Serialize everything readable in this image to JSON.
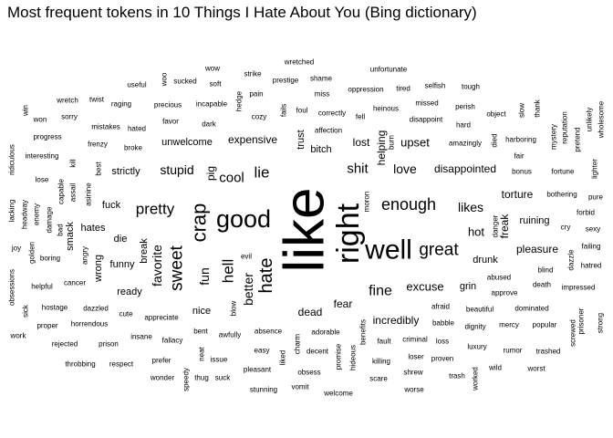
{
  "chart_data": {
    "type": "wordcloud",
    "title": "Most frequent tokens in 10 Things I Hate About You (Bing dictionary)",
    "words": [
      {
        "word": "like",
        "weight": 62,
        "rotated": true
      },
      {
        "word": "right",
        "weight": 34,
        "rotated": true
      },
      {
        "word": "well",
        "weight": 30,
        "rotated": false
      },
      {
        "word": "good",
        "weight": 27,
        "rotated": false
      },
      {
        "word": "crap",
        "weight": 22,
        "rotated": true
      },
      {
        "word": "hate",
        "weight": 20,
        "rotated": true
      },
      {
        "word": "great",
        "weight": 19,
        "rotated": false
      },
      {
        "word": "sweet",
        "weight": 19,
        "rotated": true
      },
      {
        "word": "enough",
        "weight": 18,
        "rotated": false
      },
      {
        "word": "pretty",
        "weight": 17,
        "rotated": false
      },
      {
        "word": "lie",
        "weight": 17,
        "rotated": false
      },
      {
        "word": "hell",
        "weight": 17,
        "rotated": true
      },
      {
        "word": "fine",
        "weight": 16,
        "rotated": false
      },
      {
        "word": "shit",
        "weight": 15,
        "rotated": false
      },
      {
        "word": "cool",
        "weight": 15,
        "rotated": false
      },
      {
        "word": "fun",
        "weight": 14,
        "rotated": true
      },
      {
        "word": "better",
        "weight": 14,
        "rotated": true
      },
      {
        "word": "love",
        "weight": 14,
        "rotated": false
      },
      {
        "word": "stupid",
        "weight": 14,
        "rotated": false
      },
      {
        "word": "favorite",
        "weight": 14,
        "rotated": true
      },
      {
        "word": "likes",
        "weight": 14,
        "rotated": false
      },
      {
        "word": "hot",
        "weight": 13,
        "rotated": false
      },
      {
        "word": "excuse",
        "weight": 13,
        "rotated": false
      },
      {
        "word": "upset",
        "weight": 13,
        "rotated": false
      },
      {
        "word": "disappointed",
        "weight": 12,
        "rotated": false
      },
      {
        "word": "lost",
        "weight": 12,
        "rotated": false
      },
      {
        "word": "expensive",
        "weight": 12,
        "rotated": false
      },
      {
        "word": "pig",
        "weight": 12,
        "rotated": true
      },
      {
        "word": "dead",
        "weight": 12,
        "rotated": false
      },
      {
        "word": "fear",
        "weight": 12,
        "rotated": false
      },
      {
        "word": "incredibly",
        "weight": 12,
        "rotated": false
      },
      {
        "word": "freak",
        "weight": 12,
        "rotated": true
      },
      {
        "word": "pleasure",
        "weight": 12,
        "rotated": false
      },
      {
        "word": "torture",
        "weight": 12,
        "rotated": false
      },
      {
        "word": "helping",
        "weight": 12,
        "rotated": true
      },
      {
        "word": "trust",
        "weight": 11,
        "rotated": true
      },
      {
        "word": "bitch",
        "weight": 11,
        "rotated": false
      },
      {
        "word": "unwelcome",
        "weight": 11,
        "rotated": false
      },
      {
        "word": "strictly",
        "weight": 11,
        "rotated": false
      },
      {
        "word": "fuck",
        "weight": 11,
        "rotated": false
      },
      {
        "word": "smack",
        "weight": 11,
        "rotated": true
      },
      {
        "word": "hates",
        "weight": 11,
        "rotated": false
      },
      {
        "word": "wrong",
        "weight": 11,
        "rotated": true
      },
      {
        "word": "die",
        "weight": 11,
        "rotated": false
      },
      {
        "word": "funny",
        "weight": 11,
        "rotated": false
      },
      {
        "word": "break",
        "weight": 11,
        "rotated": true
      },
      {
        "word": "ready",
        "weight": 11,
        "rotated": false
      },
      {
        "word": "grin",
        "weight": 11,
        "rotated": false
      },
      {
        "word": "drunk",
        "weight": 11,
        "rotated": false
      },
      {
        "word": "ruining",
        "weight": 11,
        "rotated": false
      },
      {
        "word": "nice",
        "weight": 11,
        "rotated": false
      },
      {
        "word": "cancer",
        "weight": 8,
        "rotated": false
      },
      {
        "word": "wretched",
        "weight": 8,
        "rotated": false
      },
      {
        "word": "wow",
        "weight": 8,
        "rotated": false
      },
      {
        "word": "strike",
        "weight": 8,
        "rotated": false
      },
      {
        "word": "prestige",
        "weight": 8,
        "rotated": false
      },
      {
        "word": "shame",
        "weight": 8,
        "rotated": false
      },
      {
        "word": "unfortunate",
        "weight": 8,
        "rotated": false
      },
      {
        "word": "useful",
        "weight": 8,
        "rotated": false
      },
      {
        "word": "woo",
        "weight": 8,
        "rotated": true
      },
      {
        "word": "sucked",
        "weight": 8,
        "rotated": false
      },
      {
        "word": "soft",
        "weight": 8,
        "rotated": false
      },
      {
        "word": "pain",
        "weight": 8,
        "rotated": false
      },
      {
        "word": "miss",
        "weight": 8,
        "rotated": false
      },
      {
        "word": "oppression",
        "weight": 8,
        "rotated": false
      },
      {
        "word": "tired",
        "weight": 8,
        "rotated": false
      },
      {
        "word": "selfish",
        "weight": 8,
        "rotated": false
      },
      {
        "word": "tough",
        "weight": 8,
        "rotated": false
      },
      {
        "word": "wretch",
        "weight": 8,
        "rotated": false
      },
      {
        "word": "twist",
        "weight": 8,
        "rotated": false
      },
      {
        "word": "raging",
        "weight": 8,
        "rotated": false
      },
      {
        "word": "precious",
        "weight": 8,
        "rotated": false
      },
      {
        "word": "incapable",
        "weight": 8,
        "rotated": false
      },
      {
        "word": "hedge",
        "weight": 8,
        "rotated": true
      },
      {
        "word": "fails",
        "weight": 8,
        "rotated": true
      },
      {
        "word": "foul",
        "weight": 8,
        "rotated": false
      },
      {
        "word": "correctly",
        "weight": 8,
        "rotated": false
      },
      {
        "word": "heinous",
        "weight": 8,
        "rotated": false
      },
      {
        "word": "missed",
        "weight": 8,
        "rotated": false
      },
      {
        "word": "perish",
        "weight": 8,
        "rotated": false
      },
      {
        "word": "win",
        "weight": 8,
        "rotated": true
      },
      {
        "word": "won",
        "weight": 8,
        "rotated": false
      },
      {
        "word": "sorry",
        "weight": 8,
        "rotated": false
      },
      {
        "word": "favor",
        "weight": 8,
        "rotated": false
      },
      {
        "word": "cozy",
        "weight": 8,
        "rotated": false
      },
      {
        "word": "fell",
        "weight": 8,
        "rotated": false
      },
      {
        "word": "disappoint",
        "weight": 8,
        "rotated": false
      },
      {
        "word": "object",
        "weight": 8,
        "rotated": false
      },
      {
        "word": "slow",
        "weight": 8,
        "rotated": true
      },
      {
        "word": "thank",
        "weight": 8,
        "rotated": true
      },
      {
        "word": "mistakes",
        "weight": 8,
        "rotated": false
      },
      {
        "word": "hated",
        "weight": 8,
        "rotated": false
      },
      {
        "word": "dark",
        "weight": 8,
        "rotated": false
      },
      {
        "word": "affection",
        "weight": 8,
        "rotated": false
      },
      {
        "word": "burn",
        "weight": 8,
        "rotated": true
      },
      {
        "word": "hard",
        "weight": 8,
        "rotated": false
      },
      {
        "word": "progress",
        "weight": 8,
        "rotated": false
      },
      {
        "word": "frenzy",
        "weight": 8,
        "rotated": false
      },
      {
        "word": "broke",
        "weight": 8,
        "rotated": false
      },
      {
        "word": "amazingly",
        "weight": 8,
        "rotated": false
      },
      {
        "word": "died",
        "weight": 8,
        "rotated": true
      },
      {
        "word": "harboring",
        "weight": 8,
        "rotated": false
      },
      {
        "word": "mystery",
        "weight": 8,
        "rotated": true
      },
      {
        "word": "reputation",
        "weight": 8,
        "rotated": true
      },
      {
        "word": "unlikely",
        "weight": 8,
        "rotated": true
      },
      {
        "word": "wholesome",
        "weight": 8,
        "rotated": true
      },
      {
        "word": "pretend",
        "weight": 8,
        "rotated": true
      },
      {
        "word": "ridiculous",
        "weight": 8,
        "rotated": true
      },
      {
        "word": "interesting",
        "weight": 8,
        "rotated": false
      },
      {
        "word": "kill",
        "weight": 8,
        "rotated": true
      },
      {
        "word": "best",
        "weight": 8,
        "rotated": true
      },
      {
        "word": "fair",
        "weight": 8,
        "rotated": false
      },
      {
        "word": "bonus",
        "weight": 8,
        "rotated": false
      },
      {
        "word": "fortune",
        "weight": 8,
        "rotated": false
      },
      {
        "word": "lighter",
        "weight": 8,
        "rotated": true
      },
      {
        "word": "lose",
        "weight": 8,
        "rotated": false
      },
      {
        "word": "capable",
        "weight": 8,
        "rotated": true
      },
      {
        "word": "assail",
        "weight": 8,
        "rotated": true
      },
      {
        "word": "asinine",
        "weight": 8,
        "rotated": true
      },
      {
        "word": "moron",
        "weight": 8,
        "rotated": true
      },
      {
        "word": "bothering",
        "weight": 8,
        "rotated": false
      },
      {
        "word": "pure",
        "weight": 8,
        "rotated": false
      },
      {
        "word": "lacking",
        "weight": 8,
        "rotated": true
      },
      {
        "word": "headway",
        "weight": 8,
        "rotated": true
      },
      {
        "word": "enemy",
        "weight": 8,
        "rotated": true
      },
      {
        "word": "damage",
        "weight": 8,
        "rotated": true
      },
      {
        "word": "bad",
        "weight": 8,
        "rotated": true
      },
      {
        "word": "forbid",
        "weight": 8,
        "rotated": false
      },
      {
        "word": "danger",
        "weight": 8,
        "rotated": true
      },
      {
        "word": "cry",
        "weight": 8,
        "rotated": false
      },
      {
        "word": "sexy",
        "weight": 8,
        "rotated": false
      },
      {
        "word": "joy",
        "weight": 8,
        "rotated": false
      },
      {
        "word": "golden",
        "weight": 8,
        "rotated": true
      },
      {
        "word": "boring",
        "weight": 8,
        "rotated": false
      },
      {
        "word": "angry",
        "weight": 8,
        "rotated": true
      },
      {
        "word": "evil",
        "weight": 8,
        "rotated": false
      },
      {
        "word": "failing",
        "weight": 8,
        "rotated": false
      },
      {
        "word": "dazzle",
        "weight": 8,
        "rotated": true
      },
      {
        "word": "blind",
        "weight": 8,
        "rotated": false
      },
      {
        "word": "hatred",
        "weight": 8,
        "rotated": false
      },
      {
        "word": "obsessions",
        "weight": 8,
        "rotated": true
      },
      {
        "word": "helpful",
        "weight": 8,
        "rotated": false
      },
      {
        "word": "abused",
        "weight": 8,
        "rotated": false
      },
      {
        "word": "death",
        "weight": 8,
        "rotated": false
      },
      {
        "word": "approve",
        "weight": 8,
        "rotated": false
      },
      {
        "word": "impressed",
        "weight": 8,
        "rotated": false
      },
      {
        "word": "sick",
        "weight": 8,
        "rotated": true
      },
      {
        "word": "hostage",
        "weight": 8,
        "rotated": false
      },
      {
        "word": "dazzled",
        "weight": 8,
        "rotated": false
      },
      {
        "word": "blow",
        "weight": 8,
        "rotated": true
      },
      {
        "word": "afraid",
        "weight": 8,
        "rotated": false
      },
      {
        "word": "beautiful",
        "weight": 8,
        "rotated": false
      },
      {
        "word": "dominated",
        "weight": 8,
        "rotated": false
      },
      {
        "word": "cute",
        "weight": 8,
        "rotated": false
      },
      {
        "word": "appreciate",
        "weight": 8,
        "rotated": false
      },
      {
        "word": "proper",
        "weight": 8,
        "rotated": false
      },
      {
        "word": "horrendous",
        "weight": 8,
        "rotated": false
      },
      {
        "word": "babble",
        "weight": 8,
        "rotated": false
      },
      {
        "word": "dignity",
        "weight": 8,
        "rotated": false
      },
      {
        "word": "mercy",
        "weight": 8,
        "rotated": false
      },
      {
        "word": "popular",
        "weight": 8,
        "rotated": false
      },
      {
        "word": "prisoner",
        "weight": 8,
        "rotated": true
      },
      {
        "word": "strong",
        "weight": 8,
        "rotated": true
      },
      {
        "word": "bent",
        "weight": 8,
        "rotated": false
      },
      {
        "word": "absence",
        "weight": 8,
        "rotated": false
      },
      {
        "word": "adorable",
        "weight": 8,
        "rotated": false
      },
      {
        "word": "benefits",
        "weight": 8,
        "rotated": true
      },
      {
        "word": "screwed",
        "weight": 8,
        "rotated": true
      },
      {
        "word": "work",
        "weight": 8,
        "rotated": false
      },
      {
        "word": "insane",
        "weight": 8,
        "rotated": false
      },
      {
        "word": "awfully",
        "weight": 8,
        "rotated": false
      },
      {
        "word": "charm",
        "weight": 8,
        "rotated": true
      },
      {
        "word": "criminal",
        "weight": 8,
        "rotated": false
      },
      {
        "word": "fault",
        "weight": 8,
        "rotated": false
      },
      {
        "word": "loss",
        "weight": 8,
        "rotated": false
      },
      {
        "word": "luxury",
        "weight": 8,
        "rotated": false
      },
      {
        "word": "rejected",
        "weight": 8,
        "rotated": false
      },
      {
        "word": "prison",
        "weight": 8,
        "rotated": false
      },
      {
        "word": "fallacy",
        "weight": 8,
        "rotated": false
      },
      {
        "word": "easy",
        "weight": 8,
        "rotated": false
      },
      {
        "word": "decent",
        "weight": 8,
        "rotated": false
      },
      {
        "word": "promise",
        "weight": 8,
        "rotated": true
      },
      {
        "word": "loser",
        "weight": 8,
        "rotated": false
      },
      {
        "word": "proven",
        "weight": 8,
        "rotated": false
      },
      {
        "word": "rumor",
        "weight": 8,
        "rotated": false
      },
      {
        "word": "trashed",
        "weight": 8,
        "rotated": false
      },
      {
        "word": "prefer",
        "weight": 8,
        "rotated": false
      },
      {
        "word": "neat",
        "weight": 8,
        "rotated": true
      },
      {
        "word": "issue",
        "weight": 8,
        "rotated": false
      },
      {
        "word": "liked",
        "weight": 8,
        "rotated": true
      },
      {
        "word": "hideous",
        "weight": 8,
        "rotated": true
      },
      {
        "word": "killing",
        "weight": 8,
        "rotated": false
      },
      {
        "word": "throbbing",
        "weight": 8,
        "rotated": false
      },
      {
        "word": "respect",
        "weight": 8,
        "rotated": false
      },
      {
        "word": "pleasant",
        "weight": 8,
        "rotated": false
      },
      {
        "word": "obsess",
        "weight": 8,
        "rotated": false
      },
      {
        "word": "shrew",
        "weight": 8,
        "rotated": false
      },
      {
        "word": "trash",
        "weight": 8,
        "rotated": false
      },
      {
        "word": "wild",
        "weight": 8,
        "rotated": false
      },
      {
        "word": "worst",
        "weight": 8,
        "rotated": false
      },
      {
        "word": "wonder",
        "weight": 8,
        "rotated": false
      },
      {
        "word": "speedy",
        "weight": 8,
        "rotated": true
      },
      {
        "word": "thug",
        "weight": 8,
        "rotated": false
      },
      {
        "word": "suck",
        "weight": 8,
        "rotated": false
      },
      {
        "word": "worked",
        "weight": 8,
        "rotated": true
      },
      {
        "word": "scare",
        "weight": 8,
        "rotated": false
      },
      {
        "word": "stunning",
        "weight": 8,
        "rotated": false
      },
      {
        "word": "vomit",
        "weight": 8,
        "rotated": false
      },
      {
        "word": "welcome",
        "weight": 8,
        "rotated": false
      },
      {
        "word": "worse",
        "weight": 8,
        "rotated": false
      }
    ]
  }
}
